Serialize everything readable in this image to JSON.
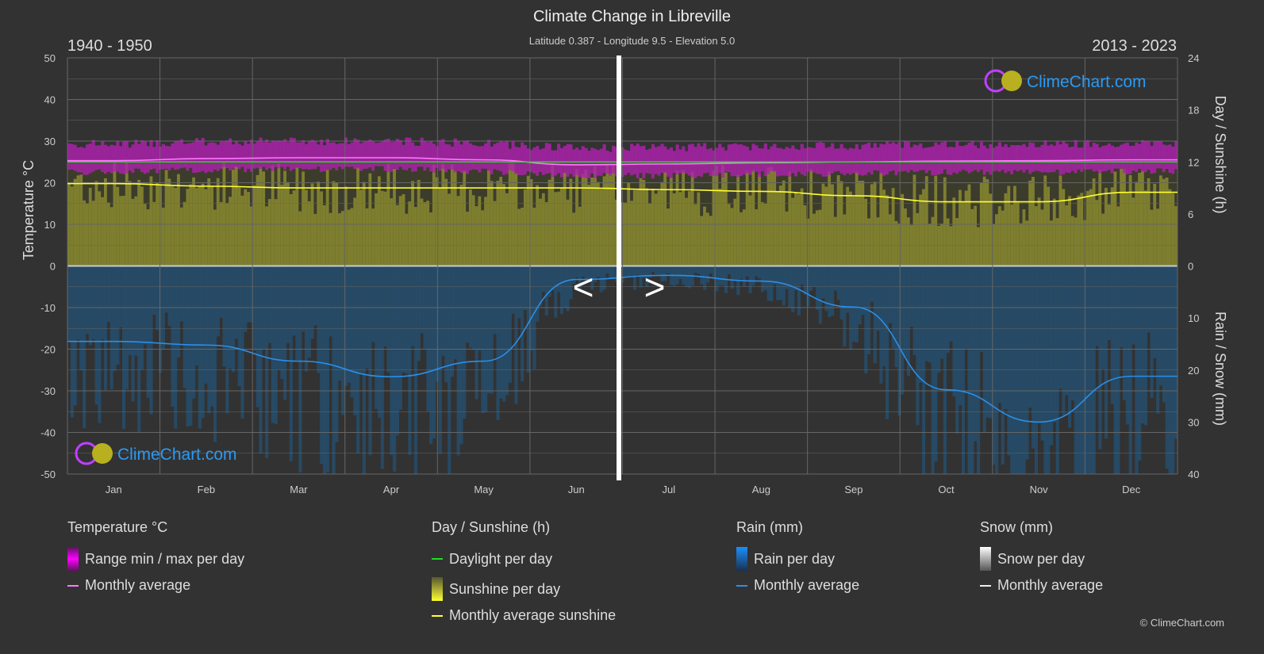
{
  "header": {
    "title": "Climate Change in Libreville",
    "subtitle": "Latitude 0.387 - Longitude 9.5 - Elevation 5.0",
    "period_left": "1940 - 1950",
    "period_right": "2013 - 2023"
  },
  "watermark": "ClimeChart.com",
  "copyright": "© ClimeChart.com",
  "nav": {
    "prev": "<",
    "next": ">"
  },
  "chart_data": {
    "type": "line",
    "categories": [
      "Jan",
      "Feb",
      "Mar",
      "Apr",
      "May",
      "Jun",
      "Jul",
      "Aug",
      "Sep",
      "Oct",
      "Nov",
      "Dec"
    ],
    "y_left": {
      "label": "Temperature °C",
      "range": [
        -50,
        50
      ],
      "ticks": [
        50,
        40,
        30,
        20,
        10,
        0,
        -10,
        -20,
        -30,
        -40,
        -50
      ]
    },
    "y_right_top": {
      "label": "Day / Sunshine (h)",
      "range": [
        0,
        24
      ],
      "ticks": [
        24,
        18,
        12,
        6,
        0
      ]
    },
    "y_right_bottom": {
      "label": "Rain / Snow (mm)",
      "range": [
        0,
        40
      ],
      "ticks": [
        0,
        10,
        20,
        30,
        40
      ]
    },
    "grid": true,
    "series": [
      {
        "name": "Monthly average",
        "group": "Temperature °C",
        "color": "#ff77ff",
        "axis": "temperature",
        "values": [
          25.3,
          25.8,
          26.0,
          26.0,
          25.5,
          24.3,
          24.5,
          24.8,
          25.0,
          25.2,
          25.3,
          25.5
        ]
      },
      {
        "name": "Daylight per day",
        "group": "Day / Sunshine (h)",
        "color": "#22dd22",
        "axis": "sunshine",
        "values": [
          12.0,
          12.0,
          12.0,
          12.0,
          12.0,
          12.0,
          12.0,
          12.0,
          12.0,
          12.0,
          12.0,
          12.0
        ]
      },
      {
        "name": "Monthly average sunshine",
        "group": "Day / Sunshine (h)",
        "color": "#ffff33",
        "axis": "sunshine",
        "values": [
          9.5,
          9.2,
          9.0,
          9.0,
          9.0,
          9.0,
          8.8,
          8.6,
          8.1,
          7.4,
          7.4,
          8.5
        ]
      },
      {
        "name": "Monthly average",
        "group": "Rain (mm)",
        "color": "#2b8fe8",
        "axis": "rain",
        "values": [
          14.5,
          15.2,
          18.3,
          21.3,
          18.3,
          2.6,
          1.8,
          2.9,
          7.9,
          23.8,
          30.0,
          21.2
        ]
      }
    ]
  },
  "legend": {
    "temperature": {
      "title": "Temperature °C",
      "items": [
        "Range min / max per day",
        "Monthly average"
      ]
    },
    "sunshine": {
      "title": "Day / Sunshine (h)",
      "items": [
        "Daylight per day",
        "Sunshine per day",
        "Monthly average sunshine"
      ]
    },
    "rain": {
      "title": "Rain (mm)",
      "items": [
        "Rain per day",
        "Monthly average"
      ]
    },
    "snow": {
      "title": "Snow (mm)",
      "items": [
        "Snow per day",
        "Monthly average"
      ]
    }
  },
  "colors": {
    "background": "#323232",
    "temp_range": "#c000c0",
    "sunshine_fill": "#8a8a30",
    "rain_fill": "#1f5c8c",
    "watermark": "#2b9af3"
  }
}
